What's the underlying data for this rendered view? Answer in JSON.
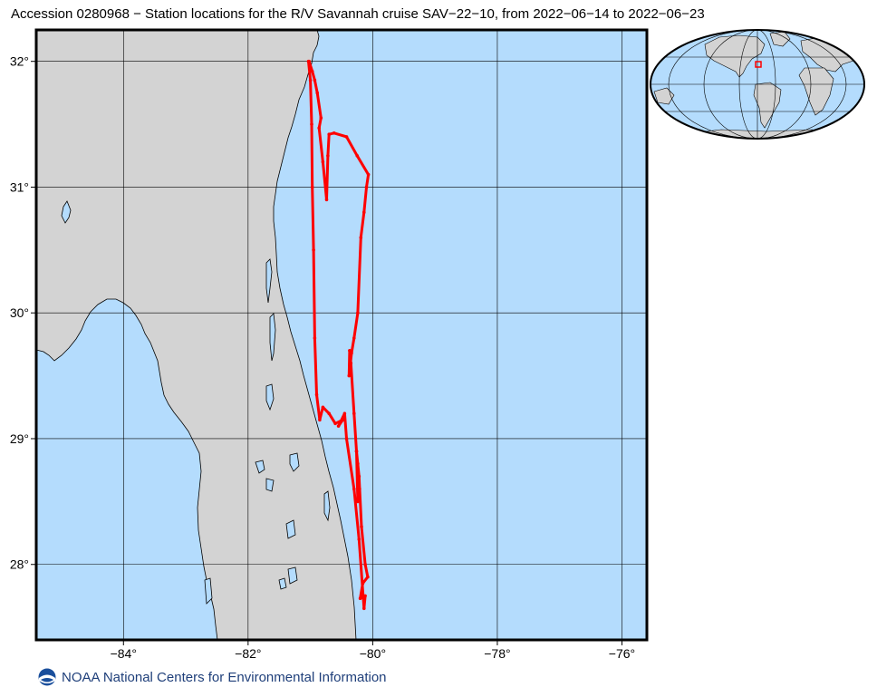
{
  "title": "Accession 0280968 − Station locations for the R/V Savannah cruise SAV−22−10, from 2022−06−14 to 2022−06−23",
  "map": {
    "lon_range": [
      -85.4,
      -75.6
    ],
    "lat_range": [
      27.4,
      32.25
    ],
    "lon_ticks": [
      {
        "value": -84,
        "label": "−84°"
      },
      {
        "value": -82,
        "label": "−82°"
      },
      {
        "value": -80,
        "label": "−80°"
      },
      {
        "value": -78,
        "label": "−78°"
      },
      {
        "value": -76,
        "label": "−76°"
      }
    ],
    "lat_ticks": [
      {
        "value": 28,
        "label": "28°"
      },
      {
        "value": 29,
        "label": "29°"
      },
      {
        "value": 30,
        "label": "30°"
      },
      {
        "value": 31,
        "label": "31°"
      },
      {
        "value": 32,
        "label": "32°"
      }
    ],
    "colors": {
      "ocean": "#b4dcfd",
      "land": "#d3d3d3",
      "coast": "#000000",
      "track": "#ff0000",
      "grid": "#000000"
    },
    "track_points": [
      [
        -81.02,
        32.0
      ],
      [
        -80.97,
        31.92
      ],
      [
        -80.93,
        31.85
      ],
      [
        -80.89,
        31.75
      ],
      [
        -80.83,
        31.55
      ],
      [
        -80.86,
        31.47
      ],
      [
        -80.8,
        31.2
      ],
      [
        -80.74,
        30.9
      ],
      [
        -80.72,
        31.25
      ],
      [
        -80.7,
        31.42
      ],
      [
        -80.62,
        31.43
      ],
      [
        -80.42,
        31.4
      ],
      [
        -80.25,
        31.25
      ],
      [
        -80.07,
        31.1
      ],
      [
        -80.1,
        31.0
      ],
      [
        -80.14,
        30.8
      ],
      [
        -80.19,
        30.6
      ],
      [
        -80.24,
        30.0
      ],
      [
        -80.3,
        29.8
      ],
      [
        -80.34,
        29.68
      ],
      [
        -80.38,
        29.5
      ],
      [
        -80.37,
        29.7
      ],
      [
        -80.35,
        29.6
      ],
      [
        -80.3,
        29.2
      ],
      [
        -80.26,
        28.9
      ],
      [
        -80.24,
        28.8
      ],
      [
        -80.21,
        28.6
      ],
      [
        -80.24,
        28.5
      ],
      [
        -80.26,
        28.9
      ],
      [
        -80.22,
        28.7
      ],
      [
        -80.18,
        28.3
      ],
      [
        -80.12,
        28.0
      ],
      [
        -80.08,
        27.9
      ],
      [
        -80.16,
        27.85
      ],
      [
        -80.2,
        27.73
      ],
      [
        -80.12,
        27.75
      ],
      [
        -80.14,
        27.65
      ],
      [
        -80.22,
        28.2
      ],
      [
        -80.3,
        28.6
      ],
      [
        -80.42,
        29.0
      ],
      [
        -80.45,
        29.2
      ],
      [
        -80.55,
        29.1
      ],
      [
        -80.48,
        29.15
      ],
      [
        -80.6,
        29.12
      ],
      [
        -80.7,
        29.2
      ],
      [
        -80.8,
        29.25
      ],
      [
        -80.85,
        29.15
      ],
      [
        -80.9,
        29.35
      ],
      [
        -80.93,
        29.8
      ],
      [
        -80.95,
        30.5
      ],
      [
        -80.97,
        31.0
      ],
      [
        -80.98,
        31.5
      ],
      [
        -81.0,
        31.85
      ],
      [
        -81.03,
        32.0
      ]
    ]
  },
  "inset": {
    "colors": {
      "ocean": "#b4dcfd",
      "land": "#d3d3d3",
      "marker": "#ff0000"
    }
  },
  "footer": {
    "logo_icon": "noaa-logo-icon",
    "text": "NOAA National Centers for Environmental Information"
  }
}
